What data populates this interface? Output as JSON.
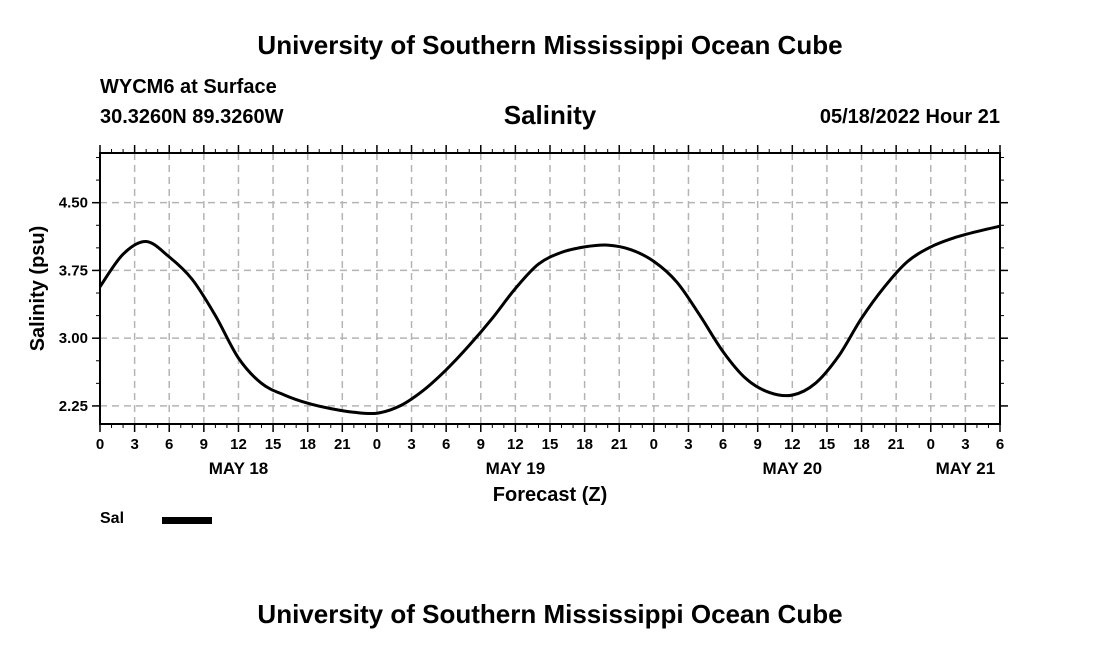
{
  "header": {
    "title": "University of Southern Mississippi Ocean Cube",
    "station": "WYCM6 at Surface",
    "coordinates": "30.3260N  89.3260W",
    "timestamp": "05/18/2022 Hour 21"
  },
  "footer": {
    "title": "University of Southern Mississippi Ocean Cube"
  },
  "legend": {
    "label": "Sal",
    "color": "#000000"
  },
  "chart_data": {
    "type": "line",
    "title": "Salinity",
    "xlabel": "Forecast (Z)",
    "ylabel": "Salinity (psu)",
    "grid": true,
    "xlim": [
      0,
      78
    ],
    "ylim": [
      2.05,
      5.05
    ],
    "y_ticks": [
      "2.25",
      "3.00",
      "3.75",
      "4.50"
    ],
    "y_tick_values": [
      2.25,
      3.0,
      3.75,
      4.5
    ],
    "x_ticks": [
      "0",
      "3",
      "6",
      "9",
      "12",
      "15",
      "18",
      "21",
      "0",
      "3",
      "6",
      "9",
      "12",
      "15",
      "18",
      "21",
      "0",
      "3",
      "6",
      "9",
      "12",
      "15",
      "18",
      "21",
      "0",
      "3",
      "6"
    ],
    "day_labels": [
      {
        "label": "MAY 18",
        "hour": 12
      },
      {
        "label": "MAY 19",
        "hour": 36
      },
      {
        "label": "MAY 20",
        "hour": 60
      },
      {
        "label": "MAY 21",
        "hour": 75
      }
    ],
    "series": [
      {
        "name": "Sal",
        "x": [
          0,
          2,
          4,
          6,
          8,
          10,
          12,
          14,
          16,
          18,
          20,
          22,
          24,
          26,
          28,
          30,
          32,
          34,
          36,
          38,
          40,
          42,
          44,
          46,
          48,
          50,
          52,
          54,
          56,
          58,
          60,
          62,
          64,
          66,
          68,
          70,
          72,
          74,
          76,
          78
        ],
        "y": [
          3.57,
          3.93,
          4.07,
          3.9,
          3.65,
          3.25,
          2.78,
          2.5,
          2.37,
          2.28,
          2.22,
          2.18,
          2.17,
          2.25,
          2.42,
          2.65,
          2.92,
          3.22,
          3.55,
          3.82,
          3.95,
          4.01,
          4.03,
          3.98,
          3.85,
          3.62,
          3.25,
          2.85,
          2.55,
          2.4,
          2.37,
          2.5,
          2.8,
          3.22,
          3.57,
          3.85,
          4.01,
          4.11,
          4.18,
          4.24
        ]
      }
    ]
  }
}
